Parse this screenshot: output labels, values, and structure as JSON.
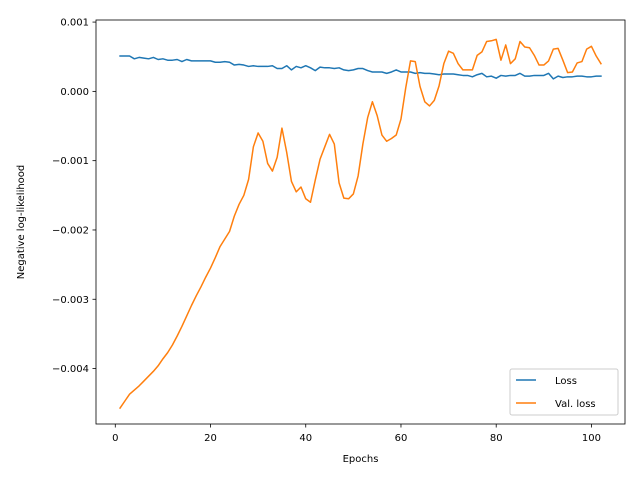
{
  "chart_data": {
    "type": "line",
    "xlabel": "Epochs",
    "ylabel": "Negative log-likelihood",
    "xlim": [
      -4.05,
      107.05
    ],
    "ylim": [
      -0.0048,
      0.00103
    ],
    "xticks": [
      0,
      20,
      40,
      60,
      80,
      100
    ],
    "yticks": [
      0.001,
      0.0,
      -0.001,
      -0.002,
      -0.003,
      -0.004
    ],
    "ytick_labels": [
      "0.001",
      "0.000",
      "−0.001",
      "−0.002",
      "−0.003",
      "−0.004"
    ],
    "grid": false,
    "legend_position": "lower-right",
    "series": [
      {
        "name": "Loss",
        "color": "#1f77b4",
        "x": [
          1,
          2,
          3,
          4,
          5,
          6,
          7,
          8,
          9,
          10,
          11,
          12,
          13,
          14,
          15,
          16,
          17,
          18,
          19,
          20,
          21,
          22,
          23,
          24,
          25,
          26,
          27,
          28,
          29,
          30,
          31,
          32,
          33,
          34,
          35,
          36,
          37,
          38,
          39,
          40,
          41,
          42,
          43,
          44,
          45,
          46,
          47,
          48,
          49,
          50,
          51,
          52,
          53,
          54,
          55,
          56,
          57,
          58,
          59,
          60,
          61,
          62,
          63,
          64,
          65,
          66,
          67,
          68,
          69,
          70,
          71,
          72,
          73,
          74,
          75,
          76,
          77,
          78,
          79,
          80,
          81,
          82,
          83,
          84,
          85,
          86,
          87,
          88,
          89,
          90,
          91,
          92,
          93,
          94,
          95,
          96,
          97,
          98,
          99,
          100,
          101,
          102
        ],
        "values": [
          0.00051,
          0.00051,
          0.00051,
          0.00047,
          0.00049,
          0.00048,
          0.00047,
          0.00049,
          0.00046,
          0.00047,
          0.00045,
          0.00045,
          0.00046,
          0.00043,
          0.00046,
          0.00044,
          0.00044,
          0.00044,
          0.00044,
          0.00044,
          0.00042,
          0.00042,
          0.00043,
          0.00042,
          0.00038,
          0.00039,
          0.00038,
          0.00036,
          0.00037,
          0.00036,
          0.00036,
          0.00036,
          0.00037,
          0.00033,
          0.00033,
          0.00037,
          0.00031,
          0.00036,
          0.00034,
          0.00037,
          0.00034,
          0.0003,
          0.00035,
          0.00034,
          0.00034,
          0.00033,
          0.00034,
          0.00031,
          0.0003,
          0.00031,
          0.00033,
          0.00033,
          0.0003,
          0.00028,
          0.00028,
          0.00028,
          0.00026,
          0.00028,
          0.00031,
          0.00028,
          0.00028,
          0.00028,
          0.00026,
          0.00027,
          0.00026,
          0.00026,
          0.00025,
          0.00024,
          0.00025,
          0.00025,
          0.00025,
          0.00024,
          0.00023,
          0.00023,
          0.00021,
          0.00024,
          0.00026,
          0.00021,
          0.00022,
          0.00019,
          0.00023,
          0.00022,
          0.00023,
          0.00023,
          0.00026,
          0.00022,
          0.00022,
          0.00023,
          0.00023,
          0.00023,
          0.00026,
          0.00018,
          0.00022,
          0.0002,
          0.00021,
          0.00021,
          0.00022,
          0.00022,
          0.00021,
          0.00021,
          0.00022,
          0.00022
        ]
      },
      {
        "name": "Val. loss",
        "color": "#ff7f0e",
        "x": [
          1,
          2,
          3,
          4,
          5,
          6,
          7,
          8,
          9,
          10,
          11,
          12,
          13,
          14,
          15,
          16,
          17,
          18,
          19,
          20,
          21,
          22,
          23,
          24,
          25,
          26,
          27,
          28,
          29,
          30,
          31,
          32,
          33,
          34,
          35,
          36,
          37,
          38,
          39,
          40,
          41,
          42,
          43,
          44,
          45,
          46,
          47,
          48,
          49,
          50,
          51,
          52,
          53,
          54,
          55,
          56,
          57,
          58,
          59,
          60,
          61,
          62,
          63,
          64,
          65,
          66,
          67,
          68,
          69,
          70,
          71,
          72,
          73,
          74,
          75,
          76,
          77,
          78,
          79,
          80,
          81,
          82,
          83,
          84,
          85,
          86,
          87,
          88,
          89,
          90,
          91,
          92,
          93,
          94,
          95,
          96,
          97,
          98,
          99,
          100,
          101,
          102
        ],
        "values": [
          -0.00457,
          -0.00447,
          -0.00437,
          -0.00431,
          -0.00425,
          -0.00418,
          -0.00411,
          -0.00404,
          -0.00396,
          -0.00386,
          -0.00377,
          -0.00366,
          -0.00353,
          -0.00339,
          -0.00324,
          -0.00309,
          -0.00295,
          -0.00282,
          -0.00268,
          -0.00255,
          -0.0024,
          -0.00224,
          -0.00213,
          -0.00202,
          -0.0018,
          -0.00163,
          -0.0015,
          -0.00127,
          -0.0008,
          -0.0006,
          -0.00072,
          -0.00104,
          -0.00115,
          -0.00095,
          -0.00053,
          -0.00088,
          -0.0013,
          -0.00145,
          -0.00138,
          -0.00155,
          -0.0016,
          -0.00128,
          -0.00098,
          -0.0008,
          -0.00062,
          -0.00076,
          -0.00132,
          -0.00154,
          -0.00155,
          -0.00148,
          -0.00122,
          -0.00076,
          -0.00038,
          -0.00015,
          -0.00035,
          -0.00063,
          -0.00072,
          -0.00068,
          -0.00063,
          -0.0004,
          5e-05,
          0.00044,
          0.00043,
          7e-05,
          -0.00015,
          -0.00021,
          -0.00013,
          8e-05,
          0.0004,
          0.00058,
          0.00055,
          0.0004,
          0.00031,
          0.00031,
          0.00031,
          0.00052,
          0.00057,
          0.00072,
          0.00073,
          0.00075,
          0.00045,
          0.00067,
          0.0004,
          0.00047,
          0.00072,
          0.00064,
          0.00063,
          0.00052,
          0.00038,
          0.00038,
          0.00044,
          0.00061,
          0.00062,
          0.00045,
          0.00027,
          0.00028,
          0.00041,
          0.00043,
          0.00061,
          0.00065,
          0.00051,
          0.0004
        ]
      }
    ]
  }
}
